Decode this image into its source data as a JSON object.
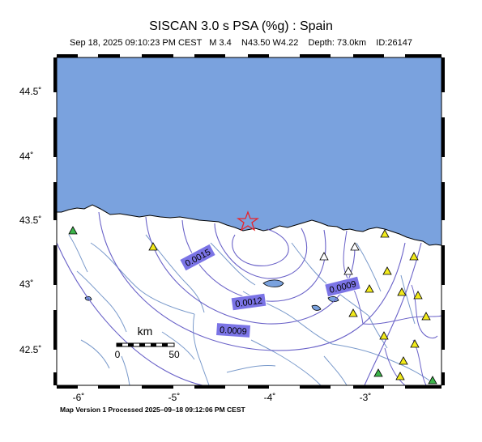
{
  "header": {
    "title": "SISCAN 3.0 s PSA (%g) : Spain",
    "subtitle": "Sep 18, 2025 09:10:23 PM CEST   M 3.4    N43.50 W4.22    Depth: 73.0km    ID:26147"
  },
  "axes": {
    "y_ticks": [
      "44.5˚",
      "44˚",
      "43.5˚",
      "43˚",
      "42.5˚"
    ],
    "x_ticks": [
      "-6˚",
      "-5˚",
      "-4˚",
      "-3˚"
    ]
  },
  "scale_bar": {
    "unit": "km",
    "start": "0",
    "end": "50"
  },
  "contours": {
    "labels": [
      "0.0015",
      "0.0012",
      "0.0009",
      "0.0009"
    ]
  },
  "epicenter": {
    "symbol": "star",
    "color": "#e8242b"
  },
  "colors": {
    "sea": "#7aa2de",
    "contour": "#6a62c8",
    "rivers": "#7a9acb",
    "label_bg": "#7b74e6",
    "station_yellow": "#f2ea1b",
    "station_green": "#3cb54a"
  },
  "footer": {
    "text": "Map Version 1 Processed 2025–09–18 09:12:06 PM CEST"
  }
}
